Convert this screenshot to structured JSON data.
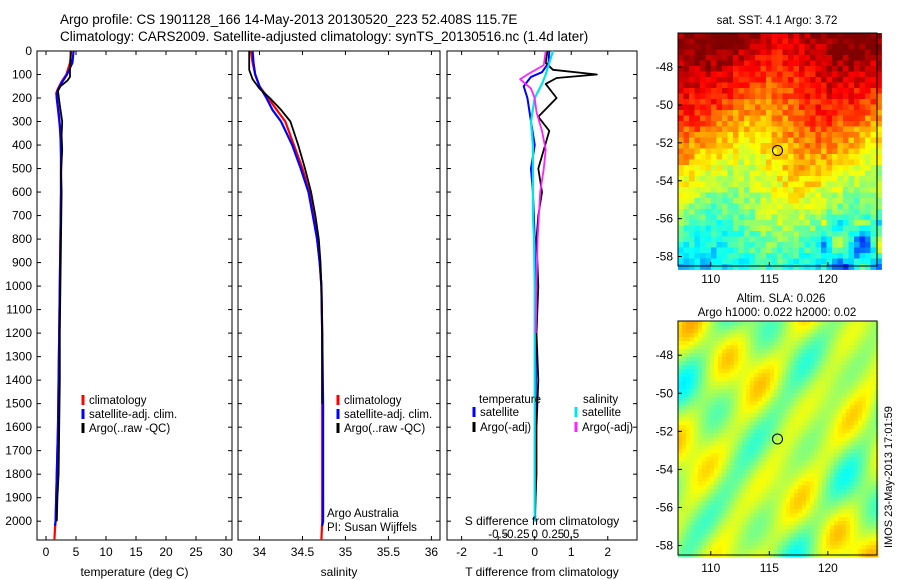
{
  "header": {
    "line1": "Argo profile: CS 1901128_166 14-May-2013 20130520_223 52.408S 115.7E",
    "line2": "Climatology: CARS2009. Satellite-adjusted climatology: synTS_20130516.nc (1.4d later)"
  },
  "side_stamp": "IMOS 23-May-2013 17:01:59",
  "colors": {
    "climatology": "#ff0000",
    "satellite": "#0000ff",
    "argo": "#000000",
    "salinity_satellite": "#00e5e5",
    "salinity_argo": "#ff22ff"
  },
  "chart_data": [
    {
      "type": "line",
      "id": "temperature",
      "xlabel": "temperature (deg C)",
      "ylabel": "",
      "xlim": [
        -1.5,
        31
      ],
      "ylim": [
        2080,
        0
      ],
      "xticks": [
        0,
        5,
        10,
        15,
        20,
        25,
        30
      ],
      "yticks": [
        0,
        100,
        200,
        300,
        400,
        500,
        600,
        700,
        800,
        900,
        1000,
        1100,
        1200,
        1300,
        1400,
        1500,
        1600,
        1700,
        1800,
        1900,
        2000
      ],
      "legend": [
        "climatology",
        "satellite-adj. clim.",
        "Argo(..raw -QC)"
      ],
      "series": [
        {
          "name": "climatology",
          "color": "#ff0000",
          "width": 2.2,
          "x": [
            4.2,
            4.0,
            3.4,
            2.6,
            2.0,
            1.7,
            2.0,
            2.3,
            2.5,
            2.5,
            2.5,
            2.4,
            2.3,
            2.2,
            2.1,
            2.0,
            1.9,
            1.8,
            1.7,
            1.6,
            1.5,
            1.4
          ],
          "y": [
            0,
            50,
            100,
            130,
            160,
            180,
            250,
            320,
            400,
            500,
            600,
            800,
            1000,
            1200,
            1400,
            1600,
            1700,
            1800,
            1900,
            2000,
            2030,
            2080
          ]
        },
        {
          "name": "satellite-adj. clim.",
          "color": "#0000ff",
          "width": 2.2,
          "x": [
            4.6,
            4.4,
            3.5,
            2.5,
            1.9,
            1.8,
            2.2,
            2.4,
            2.5,
            2.5,
            2.4,
            2.3,
            2.2,
            2.1,
            2.0,
            1.9,
            1.8,
            1.7,
            1.6,
            1.5
          ],
          "y": [
            0,
            50,
            100,
            140,
            170,
            200,
            280,
            350,
            450,
            600,
            800,
            1000,
            1200,
            1400,
            1600,
            1700,
            1800,
            1900,
            2000,
            2020
          ]
        },
        {
          "name": "Argo(..raw -QC)",
          "color": "#000000",
          "width": 1.8,
          "x": [
            4.1,
            4.1,
            4.0,
            4.0,
            3.6,
            2.4,
            2.0,
            2.3,
            2.7,
            2.6,
            2.7,
            2.5,
            2.6,
            2.5,
            2.4,
            2.3,
            2.3,
            2.2,
            2.1,
            1.9,
            1.8
          ],
          "y": [
            0,
            40,
            80,
            110,
            125,
            150,
            170,
            230,
            300,
            360,
            420,
            520,
            600,
            800,
            1000,
            1200,
            1400,
            1600,
            1800,
            1900,
            2000
          ]
        }
      ]
    },
    {
      "type": "line",
      "id": "salinity",
      "xlabel": "salinity",
      "ylabel": "",
      "xlim": [
        33.75,
        36.1
      ],
      "ylim": [
        2080,
        0
      ],
      "xticks": [
        34,
        34.5,
        35,
        35.5,
        36
      ],
      "legend": [
        "climatology",
        "satellite-adj. clim.",
        "Argo(..raw -QC)"
      ],
      "annotation": [
        "Argo Australia",
        "PI: Susan Wijffels"
      ],
      "series": [
        {
          "name": "climatology",
          "color": "#ff0000",
          "width": 2.2,
          "x": [
            33.9,
            33.92,
            33.95,
            34.0,
            34.1,
            34.2,
            34.3,
            34.4,
            34.5,
            34.58,
            34.63,
            34.67,
            34.7,
            34.72,
            34.73,
            34.73,
            34.73,
            34.73,
            34.72
          ],
          "y": [
            0,
            50,
            100,
            150,
            200,
            250,
            300,
            400,
            500,
            600,
            700,
            800,
            900,
            1000,
            1200,
            1500,
            1800,
            2000,
            2080
          ]
        },
        {
          "name": "satellite-adj. clim.",
          "color": "#0000ff",
          "width": 2.2,
          "x": [
            33.92,
            33.93,
            33.95,
            34.0,
            34.08,
            34.15,
            34.25,
            34.38,
            34.48,
            34.57,
            34.62,
            34.67,
            34.7,
            34.72,
            34.73,
            34.74,
            34.74,
            34.74,
            34.73
          ],
          "y": [
            0,
            50,
            100,
            150,
            200,
            250,
            300,
            400,
            500,
            600,
            700,
            800,
            900,
            1000,
            1200,
            1500,
            1800,
            2000,
            2020
          ]
        },
        {
          "name": "Argo(..raw -QC)",
          "color": "#000000",
          "width": 1.8,
          "x": [
            33.88,
            33.88,
            33.92,
            34.0,
            34.12,
            34.25,
            34.36,
            34.45,
            34.53,
            34.6,
            34.65,
            34.69,
            34.71,
            34.72,
            34.73,
            34.73
          ],
          "y": [
            0,
            80,
            120,
            160,
            200,
            250,
            300,
            400,
            500,
            600,
            700,
            800,
            900,
            1000,
            1200,
            1500
          ]
        }
      ]
    },
    {
      "type": "line",
      "id": "difference",
      "xlabel": "T difference from climatology",
      "xlabel_top": "S difference from climatology",
      "ylabel": "",
      "xlim": [
        -2.4,
        2.8
      ],
      "ylim": [
        2080,
        0
      ],
      "xticks": [
        -2,
        -1,
        0,
        1,
        2
      ],
      "xticks_top": [
        "-0.5",
        "-0.25",
        "0",
        "0.25",
        "0.5"
      ],
      "xticks_top_pos": [
        -1.0,
        -0.5,
        0,
        0.5,
        1.0
      ],
      "legend_title_left": "temperature",
      "legend_title_right": "salinity",
      "legend_left": [
        "satellite",
        "Argo(-adj)"
      ],
      "legend_right": [
        "satellite",
        "Argo(-adj)"
      ],
      "series": [
        {
          "name": "T satellite",
          "color": "#0000ff",
          "width": 2.0,
          "x": [
            0.4,
            0.38,
            0.2,
            -0.1,
            -0.3,
            -0.2,
            -0.1,
            0.0,
            -0.1,
            -0.05,
            0.0,
            0.02,
            0.03,
            0.03,
            0.02,
            0.02,
            0.01
          ],
          "y": [
            0,
            50,
            90,
            110,
            150,
            200,
            300,
            400,
            500,
            600,
            800,
            1000,
            1200,
            1400,
            1600,
            1800,
            2000
          ]
        },
        {
          "name": "T Argo(-adj)",
          "color": "#000000",
          "width": 1.8,
          "x": [
            0.35,
            0.3,
            0.5,
            1.7,
            0.6,
            0.3,
            0.6,
            0.1,
            0.4,
            0.25,
            0.1,
            0.2,
            0.1,
            0.05,
            0.1,
            0.05,
            0.1,
            0.05,
            0.05,
            0.0
          ],
          "y": [
            0,
            50,
            80,
            100,
            115,
            140,
            200,
            280,
            340,
            420,
            500,
            600,
            700,
            800,
            1000,
            1200,
            1400,
            1600,
            1800,
            2000
          ]
        },
        {
          "name": "S satellite",
          "color": "#00e5e5",
          "width": 2.2,
          "x": [
            0.5,
            0.4,
            0.3,
            0.2,
            0.0,
            -0.1,
            -0.05,
            -0.05,
            -0.05,
            -0.05,
            -0.02,
            0.0,
            0.0,
            0.0,
            0.0,
            0.0
          ],
          "y": [
            0,
            50,
            100,
            140,
            200,
            300,
            400,
            500,
            600,
            700,
            800,
            1000,
            1200,
            1500,
            1800,
            2000
          ]
        },
        {
          "name": "S Argo(-adj)",
          "color": "#ff22ff",
          "width": 1.8,
          "x": [
            0.3,
            0.25,
            -0.2,
            -0.4,
            -0.1,
            0.0,
            0.05,
            0.2,
            0.3,
            0.25,
            0.15,
            0.08,
            0.05,
            0.03
          ],
          "y": [
            0,
            60,
            100,
            120,
            160,
            200,
            260,
            340,
            420,
            500,
            600,
            800,
            1000,
            1200
          ]
        }
      ]
    },
    {
      "type": "heatmap",
      "id": "sst_map",
      "title": "sat. SST: 4.1 Argo: 3.72",
      "xticks": [
        110,
        115,
        120
      ],
      "yticks": [
        -48,
        -50,
        -52,
        -54,
        -56,
        -58
      ],
      "xlim": [
        107.2,
        124.2
      ],
      "ylim": [
        -58.5,
        -46.2
      ],
      "marker": {
        "lon": 115.7,
        "lat": -52.4
      }
    },
    {
      "type": "heatmap",
      "id": "sla_map",
      "title": "Altim. SLA: 0.026",
      "subtitle": "Argo h1000: 0.022 h2000: 0.02",
      "xticks": [
        110,
        115,
        120
      ],
      "yticks": [
        -48,
        -50,
        -52,
        -54,
        -56,
        -58
      ],
      "xlim": [
        107.2,
        124.2
      ],
      "ylim": [
        -58.5,
        -46.2
      ],
      "marker": {
        "lon": 115.7,
        "lat": -52.4
      }
    }
  ]
}
